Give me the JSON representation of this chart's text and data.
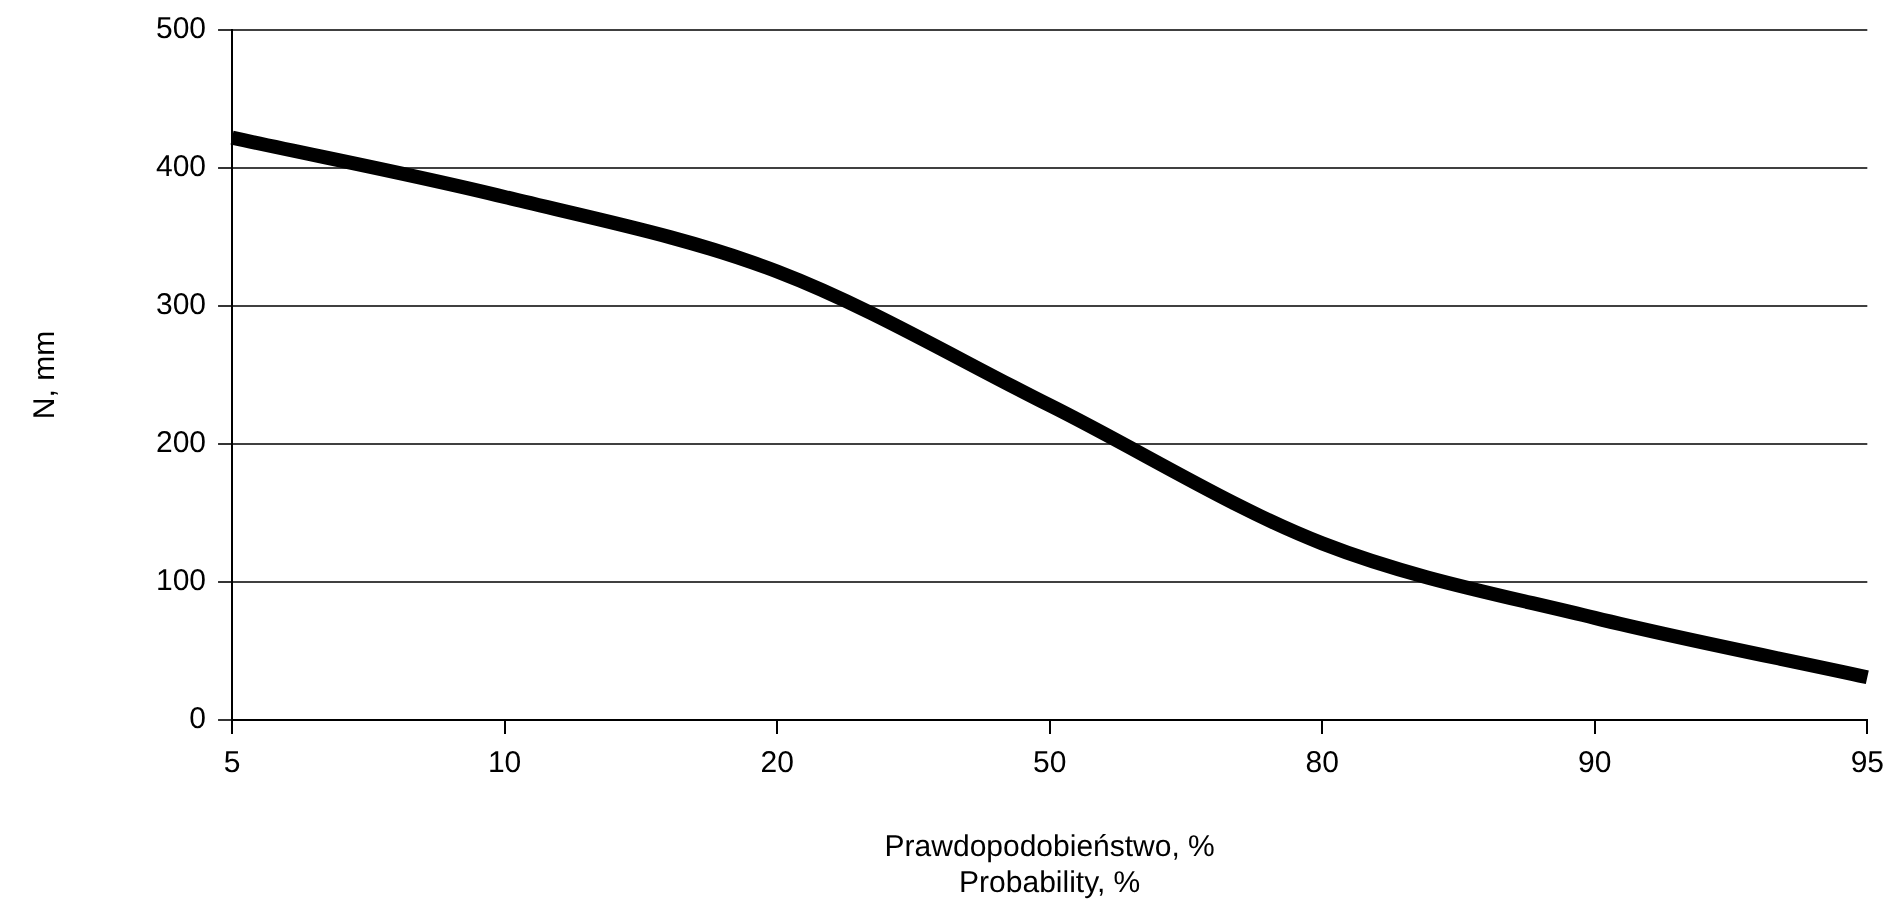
{
  "chart_data": {
    "type": "line",
    "xlabel": "Prawdopodobieństwo, %\nProbability, %",
    "ylabel": "N, mm",
    "categories": [
      "5",
      "10",
      "20",
      "50",
      "80",
      "90",
      "95"
    ],
    "series": [
      {
        "color": "#000000",
        "values": [
          422,
          379,
          325,
          228,
          128,
          74,
          31
        ]
      }
    ],
    "ylim": [
      0,
      500
    ],
    "yticks": [
      0,
      100,
      200,
      300,
      400,
      500
    ],
    "grid": "y",
    "legend": false,
    "marker": "none",
    "line_style": "solid"
  }
}
